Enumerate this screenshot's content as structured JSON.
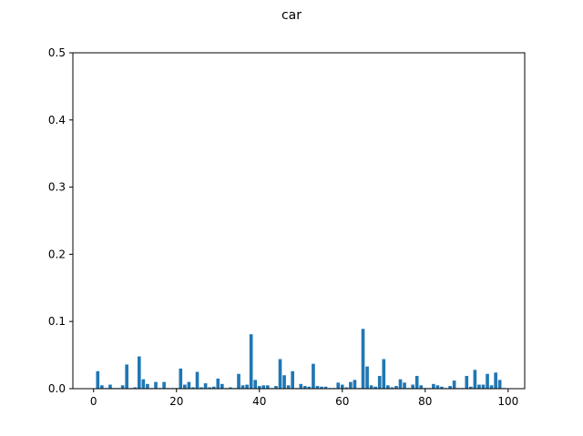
{
  "chart_data": {
    "type": "bar",
    "title": "car",
    "xlabel": "",
    "ylabel": "",
    "xlim": [
      -5,
      104
    ],
    "ylim": [
      0,
      0.5
    ],
    "xticks": [
      0,
      20,
      40,
      60,
      80,
      100
    ],
    "yticks": [
      0.0,
      0.1,
      0.2,
      0.3,
      0.4,
      0.5
    ],
    "xtick_labels": [
      "0",
      "20",
      "40",
      "60",
      "80",
      "100"
    ],
    "ytick_labels": [
      "0.0",
      "0.1",
      "0.2",
      "0.3",
      "0.4",
      "0.5"
    ],
    "grid": false,
    "bar_color": "#1f77b4",
    "x": [
      0,
      1,
      2,
      3,
      4,
      5,
      6,
      7,
      8,
      9,
      10,
      11,
      12,
      13,
      14,
      15,
      16,
      17,
      18,
      19,
      20,
      21,
      22,
      23,
      24,
      25,
      26,
      27,
      28,
      29,
      30,
      31,
      32,
      33,
      34,
      35,
      36,
      37,
      38,
      39,
      40,
      41,
      42,
      43,
      44,
      45,
      46,
      47,
      48,
      49,
      50,
      51,
      52,
      53,
      54,
      55,
      56,
      57,
      58,
      59,
      60,
      61,
      62,
      63,
      64,
      65,
      66,
      67,
      68,
      69,
      70,
      71,
      72,
      73,
      74,
      75,
      76,
      77,
      78,
      79,
      80,
      81,
      82,
      83,
      84,
      85,
      86,
      87,
      88,
      89,
      90,
      91,
      92,
      93,
      94,
      95,
      96,
      97,
      98,
      99
    ],
    "values": [
      0.0005,
      0.026,
      0.005,
      0.001,
      0.006,
      0.001,
      0.001,
      0.005,
      0.036,
      0.001,
      0.002,
      0.048,
      0.014,
      0.007,
      0.001,
      0.01,
      0.001,
      0.01,
      0.001,
      0.001,
      0.001,
      0.03,
      0.006,
      0.01,
      0.002,
      0.025,
      0.002,
      0.008,
      0.002,
      0.003,
      0.015,
      0.007,
      0.001,
      0.002,
      0.001,
      0.022,
      0.005,
      0.006,
      0.081,
      0.013,
      0.004,
      0.005,
      0.005,
      0.001,
      0.004,
      0.044,
      0.02,
      0.005,
      0.026,
      0.001,
      0.007,
      0.004,
      0.003,
      0.037,
      0.004,
      0.003,
      0.003,
      0.001,
      0.001,
      0.009,
      0.006,
      0.002,
      0.01,
      0.013,
      0.001,
      0.089,
      0.033,
      0.005,
      0.003,
      0.019,
      0.044,
      0.005,
      0.002,
      0.004,
      0.014,
      0.009,
      0.001,
      0.006,
      0.019,
      0.005,
      0.001,
      0.001,
      0.007,
      0.005,
      0.003,
      0.001,
      0.004,
      0.012,
      0.001,
      0.001,
      0.019,
      0.003,
      0.028,
      0.006,
      0.006,
      0.022,
      0.005,
      0.024,
      0.013,
      0.001
    ]
  }
}
